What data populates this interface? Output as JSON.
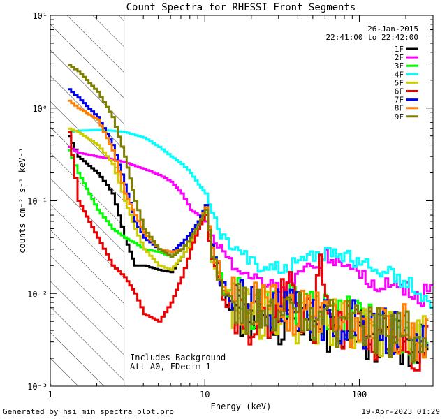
{
  "chart_data": {
    "type": "line",
    "title": "Count Spectra for RHESSI Front Segments",
    "xlabel": "Energy (keV)",
    "ylabel": "counts cm⁻² s⁻¹ keV⁻¹",
    "xscale": "log",
    "yscale": "log",
    "xlim": [
      1,
      300
    ],
    "ylim": [
      0.001,
      10
    ],
    "x_tick_labels": [
      "1",
      "10",
      "100"
    ],
    "y_tick_labels": [
      "10⁻³",
      "10⁻²",
      "10⁻¹",
      "10⁰",
      "10¹"
    ],
    "date": "26-Jan-2015",
    "time_range": "22:41:00 to 22:42:00",
    "annotations": [
      "Includes Background",
      "Att A0, FDecim 1"
    ],
    "shaded_region_xmax": 3,
    "legend_placement": "top-right",
    "series": [
      {
        "name": "1F",
        "color": "#000000",
        "x": [
          1.3,
          1.5,
          2,
          2.5,
          3,
          3.5,
          4,
          5,
          6,
          7,
          8,
          9,
          10,
          11,
          13,
          15,
          20,
          30,
          50,
          80,
          120,
          200,
          280
        ],
        "y": [
          0.5,
          0.3,
          0.2,
          0.12,
          0.04,
          0.02,
          0.02,
          0.018,
          0.017,
          0.025,
          0.035,
          0.05,
          0.08,
          0.03,
          0.01,
          0.006,
          0.005,
          0.005,
          0.004,
          0.004,
          0.0035,
          0.003,
          0.0025
        ]
      },
      {
        "name": "2F",
        "color": "#ff00ff",
        "x": [
          1.3,
          1.5,
          2,
          2.5,
          3,
          4,
          5,
          6,
          7,
          8,
          9,
          10,
          11,
          13,
          15,
          20,
          30,
          40,
          50,
          60,
          80,
          100,
          120,
          160,
          200,
          250,
          300
        ],
        "y": [
          0.38,
          0.33,
          0.3,
          0.28,
          0.26,
          0.22,
          0.19,
          0.16,
          0.12,
          0.08,
          0.07,
          0.06,
          0.04,
          0.03,
          0.02,
          0.015,
          0.012,
          0.015,
          0.02,
          0.025,
          0.02,
          0.016,
          0.013,
          0.012,
          0.011,
          0.009,
          0.006
        ]
      },
      {
        "name": "3F",
        "color": "#00ff00",
        "x": [
          1.3,
          1.5,
          2,
          2.5,
          3,
          3.5,
          4,
          5,
          6,
          7,
          8,
          9,
          10,
          11,
          13,
          15,
          20,
          30,
          50,
          80,
          120,
          200,
          280
        ],
        "y": [
          0.35,
          0.2,
          0.08,
          0.05,
          0.04,
          0.035,
          0.03,
          0.028,
          0.025,
          0.03,
          0.04,
          0.06,
          0.09,
          0.025,
          0.012,
          0.008,
          0.007,
          0.008,
          0.006,
          0.005,
          0.004,
          0.0035,
          0.003
        ]
      },
      {
        "name": "4F",
        "color": "#00ffff",
        "x": [
          1.3,
          1.5,
          2,
          2.5,
          3,
          4,
          5,
          6,
          7,
          8,
          9,
          10,
          11,
          12,
          13,
          15,
          18,
          22,
          30,
          40,
          50,
          60,
          80,
          100,
          120,
          160,
          200,
          250,
          300
        ],
        "y": [
          0.55,
          0.57,
          0.58,
          0.57,
          0.55,
          0.48,
          0.38,
          0.3,
          0.25,
          0.2,
          0.15,
          0.12,
          0.08,
          0.05,
          0.04,
          0.03,
          0.025,
          0.02,
          0.018,
          0.022,
          0.025,
          0.027,
          0.025,
          0.022,
          0.02,
          0.016,
          0.013,
          0.01,
          0.006
        ]
      },
      {
        "name": "5F",
        "color": "#cccc00",
        "x": [
          1.3,
          1.5,
          2,
          2.5,
          3,
          3.5,
          4,
          5,
          6,
          7,
          8,
          9,
          10,
          11,
          13,
          15,
          20,
          30,
          50,
          80,
          120,
          200,
          280
        ],
        "y": [
          0.6,
          0.55,
          0.4,
          0.25,
          0.1,
          0.05,
          0.03,
          0.02,
          0.018,
          0.025,
          0.035,
          0.05,
          0.075,
          0.025,
          0.011,
          0.007,
          0.006,
          0.006,
          0.005,
          0.0045,
          0.004,
          0.0035,
          0.003
        ]
      },
      {
        "name": "6F",
        "color": "#ee0000",
        "x": [
          1.3,
          1.5,
          2,
          2.5,
          3,
          3.5,
          4,
          5,
          6,
          7,
          8,
          9,
          10,
          11,
          13,
          15,
          20,
          30,
          35,
          40,
          50,
          55,
          60,
          80,
          120,
          200,
          280
        ],
        "y": [
          0.55,
          0.1,
          0.04,
          0.02,
          0.015,
          0.01,
          0.006,
          0.005,
          0.008,
          0.015,
          0.03,
          0.05,
          0.07,
          0.02,
          0.01,
          0.006,
          0.005,
          0.006,
          0.015,
          0.006,
          0.005,
          0.03,
          0.006,
          0.004,
          0.0035,
          0.003,
          0.0025
        ]
      },
      {
        "name": "7F",
        "color": "#0000ee",
        "x": [
          1.3,
          1.5,
          2,
          2.5,
          3,
          3.5,
          4,
          5,
          6,
          7,
          8,
          9,
          10,
          11,
          13,
          15,
          20,
          30,
          50,
          80,
          120,
          200,
          280
        ],
        "y": [
          1.6,
          1.3,
          0.8,
          0.4,
          0.15,
          0.06,
          0.04,
          0.03,
          0.028,
          0.035,
          0.045,
          0.06,
          0.09,
          0.03,
          0.012,
          0.008,
          0.007,
          0.008,
          0.006,
          0.005,
          0.0045,
          0.004,
          0.003
        ]
      },
      {
        "name": "8F",
        "color": "#ff8000",
        "x": [
          1.3,
          1.5,
          2,
          2.5,
          3,
          3.5,
          4,
          5,
          6,
          7,
          8,
          9,
          10,
          11,
          13,
          15,
          20,
          30,
          50,
          80,
          120,
          200,
          280
        ],
        "y": [
          1.2,
          1.0,
          0.75,
          0.35,
          0.12,
          0.07,
          0.045,
          0.03,
          0.028,
          0.03,
          0.04,
          0.055,
          0.085,
          0.03,
          0.012,
          0.008,
          0.007,
          0.007,
          0.006,
          0.005,
          0.0045,
          0.004,
          0.003
        ]
      },
      {
        "name": "9F",
        "color": "#808000",
        "x": [
          1.3,
          1.5,
          2,
          2.5,
          3,
          3.5,
          4,
          5,
          6,
          7,
          8,
          9,
          10,
          11,
          13,
          15,
          20,
          30,
          50,
          80,
          120,
          200,
          280
        ],
        "y": [
          2.9,
          2.5,
          1.5,
          0.8,
          0.3,
          0.1,
          0.05,
          0.03,
          0.025,
          0.03,
          0.04,
          0.055,
          0.08,
          0.025,
          0.011,
          0.007,
          0.006,
          0.006,
          0.005,
          0.0045,
          0.004,
          0.0035,
          0.003
        ]
      }
    ]
  },
  "footer": {
    "generated_by": "Generated by hsi_min_spectra_plot.pro",
    "timestamp": "19-Apr-2023 01:29"
  }
}
